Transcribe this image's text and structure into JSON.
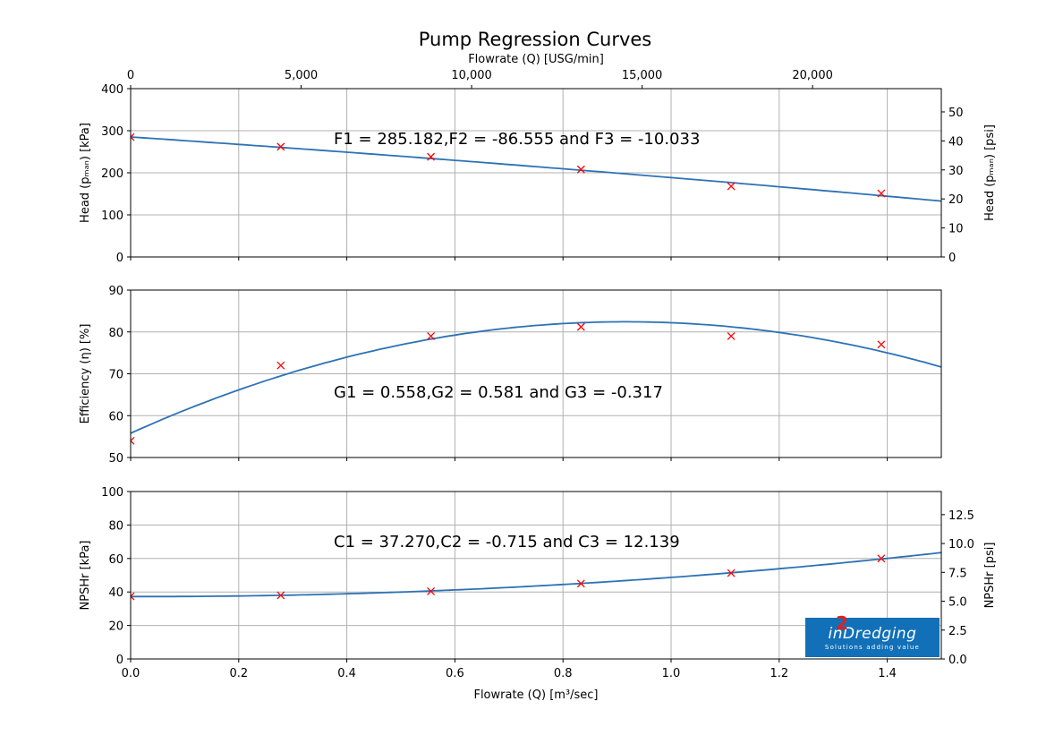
{
  "chart_data": {
    "title": "Pump Regression Curves",
    "type": "line",
    "xlabel": "Flowrate (Q) [m³/sec]",
    "xlim": [
      0,
      1.5
    ],
    "x_ticks": [
      "0.0",
      "0.2",
      "0.4",
      "0.6",
      "0.8",
      "1.0",
      "1.2",
      "1.4"
    ],
    "top_axis": {
      "label": "Flowrate (Q) [USG/min]",
      "ticks": [
        "0",
        "5,000",
        "10,000",
        "15,000",
        "20,000"
      ],
      "values": [
        0,
        5000,
        10000,
        15000,
        20000
      ],
      "factor": 15850.32
    },
    "grid": true,
    "x_points": [
      0,
      0.2778,
      0.5556,
      0.8333,
      1.1111,
      1.3889
    ],
    "panels": [
      {
        "ylabel": "Head (p_man) [kPa]",
        "ylim": [
          0,
          400
        ],
        "y_ticks": [
          0,
          100,
          200,
          300,
          400
        ],
        "right_axis": {
          "label": "Head (p_man) [psi]",
          "ticks": [
            0,
            10,
            20,
            30,
            40,
            50
          ],
          "tick_labels": [
            "0",
            "10",
            "20",
            "30",
            "40",
            "50"
          ],
          "factor": 0.145038
        },
        "measured": [
          285,
          262,
          238,
          208,
          168,
          151
        ],
        "fit": {
          "coefficients": [
            285.182,
            -86.555,
            -10.033
          ],
          "scale": 1
        },
        "annotation": "F1 = 285.182,F2 = -86.555 and F3 = -10.033"
      },
      {
        "ylabel": "Efficiency (η) [%]",
        "ylim": [
          50,
          90
        ],
        "y_ticks": [
          50,
          60,
          70,
          80,
          90
        ],
        "measured": [
          54,
          72,
          79,
          81.2,
          79,
          77
        ],
        "fit": {
          "coefficients": [
            0.558,
            0.581,
            -0.317
          ],
          "scale": 100
        },
        "annotation": "G1 = 0.558,G2 = 0.581 and G3 = -0.317"
      },
      {
        "ylabel": "NPSHr [kPa]",
        "ylim": [
          0,
          100
        ],
        "y_ticks": [
          0,
          20,
          40,
          60,
          80,
          100
        ],
        "right_axis": {
          "label": "NPSHr [psi]",
          "ticks": [
            0,
            2.5,
            5,
            7.5,
            10,
            12.5
          ],
          "tick_labels": [
            "0.0",
            "2.5",
            "5.0",
            "7.5",
            "10.0",
            "12.5"
          ],
          "factor": 0.145038
        },
        "measured": [
          37.4,
          38,
          40.4,
          45,
          51.3,
          60
        ],
        "fit": {
          "coefficients": [
            37.27,
            -0.715,
            12.139
          ],
          "scale": 1
        },
        "annotation": "C1 = 37.270,C2 = -0.715 and C3 = 12.139"
      }
    ],
    "colors": {
      "fit": "#2d72b5",
      "measured": "#ff0000",
      "grid": "#b0b0b0"
    }
  },
  "logo": {
    "brand": "in2Dredging",
    "prefix": "in",
    "superscript": "2",
    "name": "Dredging",
    "tagline": "Solutions adding value"
  }
}
